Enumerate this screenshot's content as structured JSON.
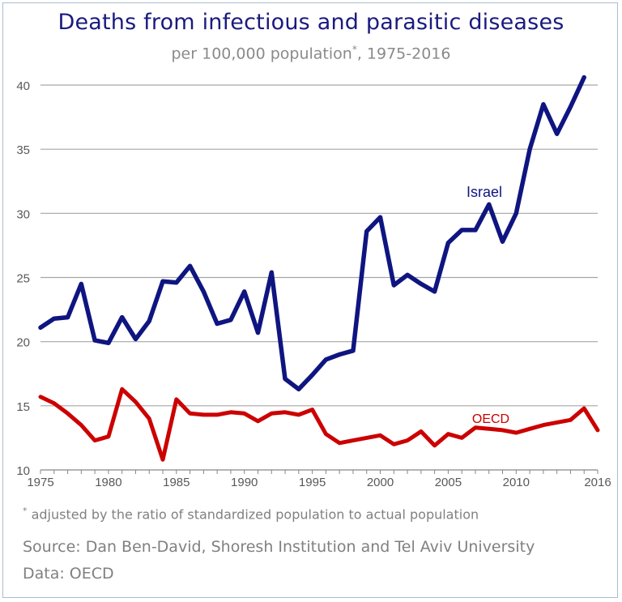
{
  "title": "Deaths from infectious and parasitic diseases",
  "subtitle_main": "per 100,000 population",
  "subtitle_mark": "*",
  "subtitle_tail": ", 1975-2016",
  "footnote_mark": "*",
  "footnote_text": " adjusted by the ratio of standardized population to actual population",
  "source": "Source: Dan Ben-David, Shoresh Institution and Tel Aviv University",
  "data_source": "Data: OECD",
  "chart_data": {
    "type": "line",
    "xlim": [
      1975,
      2016
    ],
    "ylim": [
      10,
      40
    ],
    "xticks": [
      "1975",
      "1980",
      "1985",
      "1990",
      "1995",
      "2000",
      "2005",
      "2010",
      "2016"
    ],
    "xtick_values": [
      1975,
      1980,
      1985,
      1990,
      1995,
      2000,
      2005,
      2010,
      2016
    ],
    "yticks": [
      "10",
      "15",
      "20",
      "25",
      "30",
      "35",
      "40"
    ],
    "ytick_values": [
      10,
      15,
      20,
      25,
      30,
      35,
      40
    ],
    "grid": "horizontal",
    "x": [
      1975,
      1976,
      1977,
      1978,
      1979,
      1980,
      1981,
      1982,
      1983,
      1984,
      1985,
      1986,
      1987,
      1988,
      1989,
      1990,
      1991,
      1992,
      1993,
      1994,
      1995,
      1996,
      1997,
      1998,
      1999,
      2000,
      2001,
      2002,
      2003,
      2004,
      2005,
      2006,
      2007,
      2008,
      2009,
      2010,
      2011,
      2012,
      2013,
      2014,
      2015
    ],
    "series": [
      {
        "name": "Israel",
        "color": "#0f1580",
        "values": [
          21.1,
          21.8,
          21.9,
          24.5,
          20.1,
          19.9,
          21.9,
          20.2,
          21.6,
          24.7,
          24.6,
          25.9,
          23.9,
          21.4,
          21.7,
          23.9,
          20.7,
          25.4,
          17.1,
          16.3,
          17.4,
          18.6,
          19.0,
          19.3,
          28.6,
          29.7,
          24.4,
          25.2,
          24.5,
          23.9,
          27.7,
          28.7,
          28.7,
          30.7,
          27.8,
          30.0,
          35.0,
          38.5,
          36.2,
          38.3,
          40.6
        ]
      },
      {
        "name": "OECD",
        "color": "#cc0000",
        "values": [
          15.7,
          15.2,
          14.4,
          13.5,
          12.3,
          12.6,
          16.3,
          15.3,
          14.0,
          10.8,
          15.5,
          14.4,
          14.3,
          14.3,
          14.5,
          14.4,
          13.8,
          14.4,
          14.5,
          14.3,
          14.7,
          12.8,
          12.1,
          12.3,
          12.5,
          12.7,
          12.0,
          12.3,
          13.0,
          11.9,
          12.8,
          12.5,
          13.3,
          13.2,
          13.1,
          12.9,
          13.2,
          13.5,
          13.7,
          13.9,
          14.8
        ]
      }
    ],
    "oecd_last_x": 2016,
    "oecd_last_value": 13.1
  }
}
